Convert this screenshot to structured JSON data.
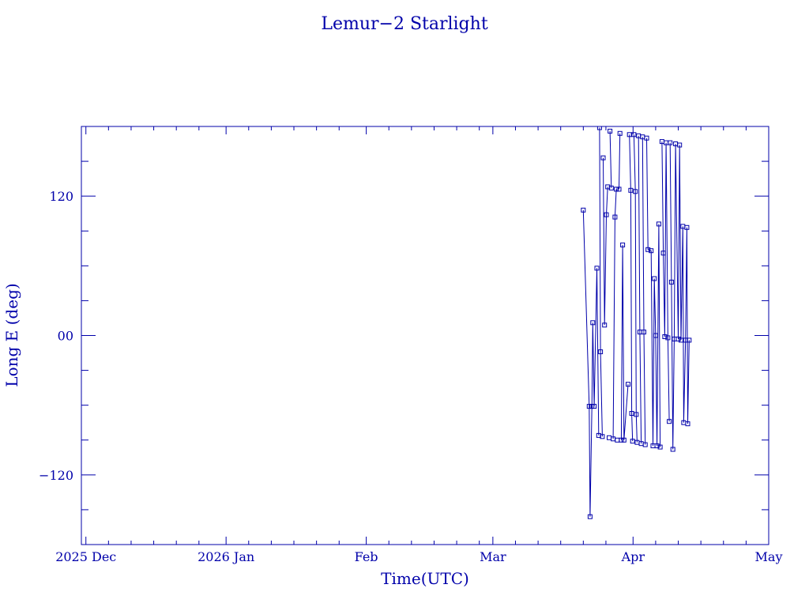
{
  "colors": {
    "ink": "#0000aa",
    "background": "#ffffff"
  },
  "chart_data": {
    "type": "line",
    "title": "Lemur−2 Starlight",
    "xlabel": "Time(UTC)",
    "ylabel": "Long E (deg)",
    "xaxis_kind": "date",
    "xlim": [
      "2025-11-30",
      "2026-05-01"
    ],
    "ylim": [
      -180,
      180
    ],
    "x_ticks": [
      {
        "date": "2025-12-01",
        "label": "2025 Dec"
      },
      {
        "date": "2026-01-01",
        "label": "2026 Jan"
      },
      {
        "date": "2026-02-01",
        "label": "Feb"
      },
      {
        "date": "2026-03-01",
        "label": "Mar"
      },
      {
        "date": "2026-04-01",
        "label": "Apr"
      },
      {
        "date": "2026-05-01",
        "label": "May"
      }
    ],
    "y_ticks": [
      {
        "value": 120,
        "label": "120"
      },
      {
        "value": 0,
        "label": "00"
      },
      {
        "value": -120,
        "label": "−120"
      }
    ],
    "grid": false,
    "series": [
      {
        "marker": "square",
        "points": [
          {
            "x": "2026-03-21.0",
            "y": 108
          },
          {
            "x": "2026-03-22.3",
            "y": -61
          },
          {
            "x": "2026-03-22.5",
            "y": -156
          },
          {
            "x": "2026-03-22.9",
            "y": -61
          },
          {
            "x": "2026-03-23.1",
            "y": 11
          },
          {
            "x": "2026-03-23.4",
            "y": -61
          },
          {
            "x": "2026-03-24.0",
            "y": 58
          },
          {
            "x": "2026-03-24.4",
            "y": -86
          },
          {
            "x": "2026-03-24.6",
            "y": 179
          },
          {
            "x": "2026-03-24.8",
            "y": -14
          },
          {
            "x": "2026-03-25.2",
            "y": -87
          },
          {
            "x": "2026-03-25.4",
            "y": 153
          },
          {
            "x": "2026-03-25.7",
            "y": 9
          },
          {
            "x": "2026-03-26.1",
            "y": 104
          },
          {
            "x": "2026-03-26.4",
            "y": 128
          },
          {
            "x": "2026-03-26.7",
            "y": -88
          },
          {
            "x": "2026-03-26.9",
            "y": 176
          },
          {
            "x": "2026-03-27.2",
            "y": 127
          },
          {
            "x": "2026-03-27.6",
            "y": -89
          },
          {
            "x": "2026-03-28.0",
            "y": 102
          },
          {
            "x": "2026-03-28.3",
            "y": 126
          },
          {
            "x": "2026-03-28.5",
            "y": -90
          },
          {
            "x": "2026-03-28.9",
            "y": 126
          },
          {
            "x": "2026-03-29.1",
            "y": 174
          },
          {
            "x": "2026-03-29.4",
            "y": -90
          },
          {
            "x": "2026-03-29.7",
            "y": 78
          },
          {
            "x": "2026-03-30.0",
            "y": -90
          },
          {
            "x": "2026-03-30.9",
            "y": -42
          },
          {
            "x": "2026-03-31.2",
            "y": 173
          },
          {
            "x": "2026-03-31.5",
            "y": 125
          },
          {
            "x": "2026-03-31.7",
            "y": -67
          },
          {
            "x": "2026-03-31.9",
            "y": -91
          },
          {
            "x": "2026-04-01.2",
            "y": 173
          },
          {
            "x": "2026-04-01.5",
            "y": 124
          },
          {
            "x": "2026-04-01.7",
            "y": -68
          },
          {
            "x": "2026-04-01.9",
            "y": -92
          },
          {
            "x": "2026-04-02.2",
            "y": 172
          },
          {
            "x": "2026-04-02.5",
            "y": 3
          },
          {
            "x": "2026-04-02.8",
            "y": -93
          },
          {
            "x": "2026-04-03.1",
            "y": 171
          },
          {
            "x": "2026-04-03.4",
            "y": 3
          },
          {
            "x": "2026-04-03.7",
            "y": -94
          },
          {
            "x": "2026-04-04.0",
            "y": 170
          },
          {
            "x": "2026-04-04.3",
            "y": 74
          },
          {
            "x": "2026-04-05.0",
            "y": 73
          },
          {
            "x": "2026-04-05.4",
            "y": -95
          },
          {
            "x": "2026-04-05.7",
            "y": 49
          },
          {
            "x": "2026-04-06.0",
            "y": 0
          },
          {
            "x": "2026-04-06.3",
            "y": -95
          },
          {
            "x": "2026-04-06.7",
            "y": 96
          },
          {
            "x": "2026-04-07.0",
            "y": -96
          },
          {
            "x": "2026-04-07.4",
            "y": 167
          },
          {
            "x": "2026-04-07.7",
            "y": 71
          },
          {
            "x": "2026-04-08.0",
            "y": -1
          },
          {
            "x": "2026-04-08.3",
            "y": 166
          },
          {
            "x": "2026-04-08.7",
            "y": -2
          },
          {
            "x": "2026-04-09.0",
            "y": -74
          },
          {
            "x": "2026-04-09.2",
            "y": 166
          },
          {
            "x": "2026-04-09.5",
            "y": 46
          },
          {
            "x": "2026-04-09.8",
            "y": -98
          },
          {
            "x": "2026-04-10.1",
            "y": -3
          },
          {
            "x": "2026-04-10.4",
            "y": 165
          },
          {
            "x": "2026-04-11.0",
            "y": -3
          },
          {
            "x": "2026-04-11.3",
            "y": 164
          },
          {
            "x": "2026-04-11.6",
            "y": -4
          },
          {
            "x": "2026-04-12.0",
            "y": 94
          },
          {
            "x": "2026-04-12.2",
            "y": -75
          },
          {
            "x": "2026-04-12.6",
            "y": -4
          },
          {
            "x": "2026-04-12.9",
            "y": 93
          },
          {
            "x": "2026-04-13.1",
            "y": -76
          },
          {
            "x": "2026-04-13.4",
            "y": -4
          }
        ]
      }
    ]
  }
}
